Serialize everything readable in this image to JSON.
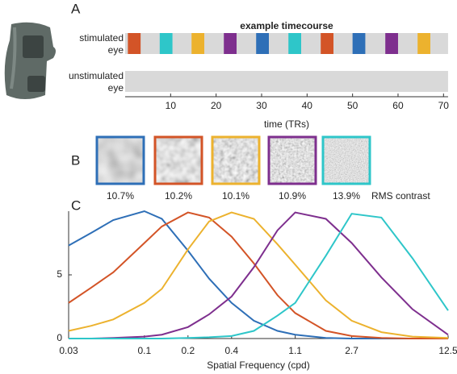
{
  "panel_labels": [
    "A",
    "B",
    "C"
  ],
  "chart_data": [
    {
      "type": "timecourse",
      "title": "example timecourse",
      "xlabel": "time (TRs)",
      "xlim": [
        0,
        71
      ],
      "xticks": [
        10,
        20,
        30,
        40,
        50,
        60,
        70
      ],
      "rows": [
        {
          "label": [
            "stimulated",
            "eye"
          ],
          "blocks": [
            {
              "start": 0.6,
              "end": 3.4,
              "color": "#d35427"
            },
            {
              "start": 7.6,
              "end": 10.4,
              "color": "#2ec6c9"
            },
            {
              "start": 14.6,
              "end": 17.4,
              "color": "#ecb22e"
            },
            {
              "start": 21.7,
              "end": 24.5,
              "color": "#7e2f8e"
            },
            {
              "start": 28.8,
              "end": 31.6,
              "color": "#2e6fb7"
            },
            {
              "start": 35.9,
              "end": 38.7,
              "color": "#2ec6c9"
            },
            {
              "start": 43.0,
              "end": 45.8,
              "color": "#d35427"
            },
            {
              "start": 50.0,
              "end": 52.8,
              "color": "#2e6fb7"
            },
            {
              "start": 57.2,
              "end": 60.0,
              "color": "#7e2f8e"
            },
            {
              "start": 64.3,
              "end": 67.1,
              "color": "#ecb22e"
            }
          ]
        },
        {
          "label": [
            "unstimulated",
            "eye"
          ],
          "blocks": []
        }
      ]
    },
    {
      "type": "stimuli",
      "caption": "RMS contrast",
      "items": [
        {
          "color": "#2e6fb7",
          "contrast": "10.7%"
        },
        {
          "color": "#d35427",
          "contrast": "10.2%"
        },
        {
          "color": "#ecb22e",
          "contrast": "10.1%"
        },
        {
          "color": "#7e2f8e",
          "contrast": "10.9%"
        },
        {
          "color": "#2ec6c9",
          "contrast": "13.9%"
        }
      ]
    },
    {
      "type": "line",
      "xlabel": "Spatial Frequency (cpd)",
      "xscale": "log",
      "xlim": [
        0.03,
        12.5
      ],
      "xticks": [
        0.03,
        0.1,
        0.2,
        0.4,
        1.1,
        2.7,
        12.5
      ],
      "ylim": [
        0,
        10
      ],
      "yticks": [
        0,
        5
      ],
      "x": [
        0.03,
        0.043,
        0.061,
        0.1,
        0.132,
        0.2,
        0.28,
        0.4,
        0.57,
        0.83,
        1.1,
        1.79,
        2.7,
        4.33,
        7.1,
        12.5
      ],
      "series": [
        {
          "color": "#2e6fb7",
          "values": [
            7.3,
            8.3,
            9.3,
            10,
            9.4,
            6.9,
            4.7,
            2.8,
            1.4,
            0.6,
            0.3,
            0.05,
            0,
            0,
            0,
            0
          ]
        },
        {
          "color": "#d35427",
          "values": [
            2.8,
            4.0,
            5.2,
            7.5,
            8.8,
            9.9,
            9.5,
            8.0,
            5.9,
            3.4,
            2.0,
            0.6,
            0.2,
            0.05,
            0,
            0
          ]
        },
        {
          "color": "#ecb22e",
          "values": [
            0.6,
            1.0,
            1.5,
            2.8,
            3.9,
            7.0,
            9.2,
            9.9,
            9.4,
            7.4,
            5.8,
            3.0,
            1.4,
            0.5,
            0.15,
            0.05
          ]
        },
        {
          "color": "#7e2f8e",
          "values": [
            0,
            0,
            0.05,
            0.15,
            0.3,
            0.9,
            1.9,
            3.3,
            5.6,
            8.5,
            9.9,
            9.4,
            7.5,
            4.8,
            2.3,
            0.3
          ]
        },
        {
          "color": "#2ec6c9",
          "values": [
            0,
            0,
            0,
            0,
            0,
            0.05,
            0.1,
            0.2,
            0.6,
            1.8,
            2.8,
            6.5,
            9.8,
            9.5,
            6.3,
            2.2
          ]
        }
      ]
    }
  ]
}
